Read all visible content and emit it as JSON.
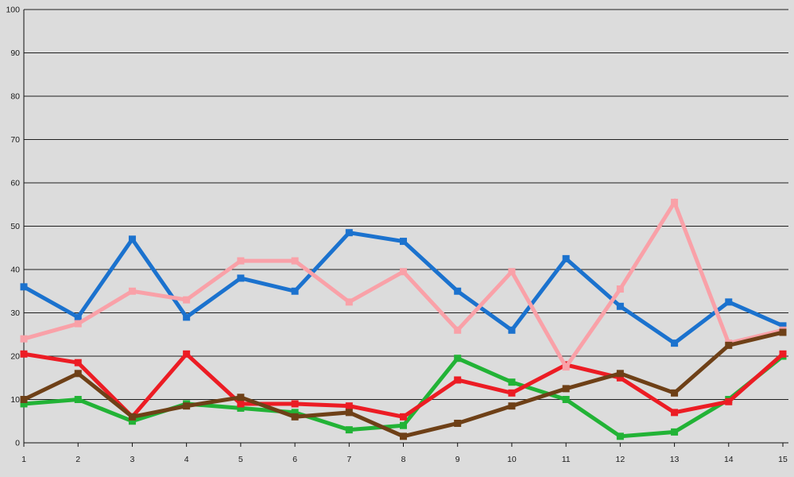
{
  "chart": {
    "background_color": "#dcdcdc",
    "gridline_color": "#1f1f1f",
    "axis_color": "#111111",
    "tick_label_color": "#1a1a1a"
  },
  "chart_data": {
    "type": "line",
    "title": "",
    "xlabel": "",
    "ylabel": "",
    "x": [
      1,
      2,
      3,
      4,
      5,
      6,
      7,
      8,
      9,
      10,
      11,
      12,
      13,
      14,
      15
    ],
    "xtick_labels": [
      "1",
      "2",
      "3",
      "4",
      "5",
      "6",
      "7",
      "8",
      "9",
      "10",
      "11",
      "12",
      "13",
      "14",
      "15"
    ],
    "ylim": [
      0,
      100
    ],
    "ytick_step": 10,
    "ytick_labels": [
      "0",
      "10",
      "20",
      "30",
      "40",
      "50",
      "60",
      "70",
      "80",
      "90",
      "100"
    ],
    "grid": "horizontal-only",
    "legend_position": "none",
    "marker": "square",
    "series": [
      {
        "name": "green-series",
        "color": "#22b336",
        "values": [
          9,
          10,
          5,
          9,
          8,
          7,
          3,
          4,
          19.5,
          14,
          10,
          1.5,
          2.5,
          10,
          20
        ]
      },
      {
        "name": "red-series",
        "color": "#ec1c24",
        "values": [
          20.5,
          18.5,
          6,
          20.5,
          9,
          9,
          8.5,
          6,
          14.5,
          11.5,
          18,
          15,
          7,
          9.5,
          20.5
        ]
      },
      {
        "name": "blue-series",
        "color": "#1b72ce",
        "values": [
          36,
          29,
          47,
          29,
          38,
          35,
          48.5,
          46.5,
          35,
          26,
          42.5,
          31.5,
          23,
          32.5,
          27
        ]
      },
      {
        "name": "pink-series",
        "color": "#f9a1a8",
        "values": [
          24,
          27.5,
          35,
          33,
          42,
          42,
          32.5,
          39.5,
          26,
          39.5,
          17.5,
          35.5,
          55.5,
          23,
          26
        ]
      },
      {
        "name": "brown-series",
        "color": "#6e4017",
        "values": [
          10,
          16,
          6,
          8.5,
          10.5,
          6,
          7,
          1.5,
          4.5,
          8.5,
          12.5,
          16,
          11.5,
          22.5,
          25.5
        ]
      }
    ]
  }
}
